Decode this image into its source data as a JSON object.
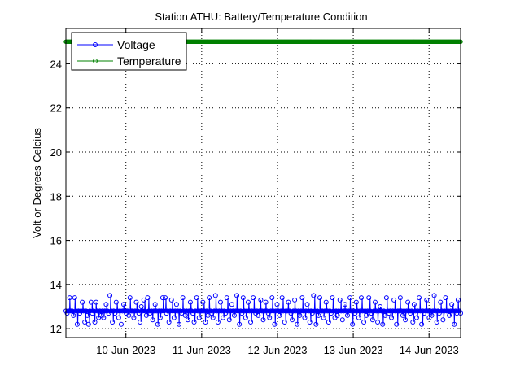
{
  "chart_data": {
    "type": "line",
    "title": "Station ATHU: Battery/Temperature Condition",
    "xlabel": "",
    "ylabel": "Volt or Degrees Celcius",
    "xlim": [
      "2023-06-09T05:00",
      "2023-06-14T10:00"
    ],
    "ylim": [
      11.6,
      25.6
    ],
    "grid": true,
    "legend_position": "top-left",
    "x_ticks": [
      {
        "label": "10-Jun-2023",
        "value": "2023-06-10"
      },
      {
        "label": "11-Jun-2023",
        "value": "2023-06-11"
      },
      {
        "label": "12-Jun-2023",
        "value": "2023-06-12"
      },
      {
        "label": "13-Jun-2023",
        "value": "2023-06-13"
      },
      {
        "label": "14-Jun-2023",
        "value": "2023-06-14"
      }
    ],
    "y_ticks": [
      {
        "label": "12",
        "value": 12
      },
      {
        "label": "14",
        "value": 14
      },
      {
        "label": "16",
        "value": 16
      },
      {
        "label": "18",
        "value": 18
      },
      {
        "label": "20",
        "value": 20
      },
      {
        "label": "22",
        "value": 22
      },
      {
        "label": "24",
        "value": 24
      }
    ],
    "series": [
      {
        "name": "Voltage",
        "color": "#0000ff",
        "marker": "circle",
        "start": "2023-06-09T05:00",
        "end": "2023-06-14T10:00",
        "typical_value": 12.8,
        "values": [
          12.8,
          12.7,
          12.8,
          13.4,
          12.8,
          12.8,
          12.6,
          13.4,
          12.8,
          12.2,
          12.8,
          12.7,
          12.8,
          13.2,
          12.8,
          12.3,
          12.8,
          12.6,
          12.2,
          12.8,
          13.2,
          12.7,
          12.8,
          12.3,
          13.2,
          12.8,
          12.5,
          12.8,
          12.6,
          12.8,
          12.5,
          12.8,
          13.1,
          12.8,
          12.7,
          13.5,
          12.8,
          12.3,
          12.8,
          12.7,
          13.2,
          12.8,
          12.5,
          12.8,
          12.2,
          12.8,
          13.1,
          12.8,
          12.7,
          12.8,
          12.6,
          13.4,
          12.8,
          12.8,
          12.5,
          12.8,
          13.2,
          12.8,
          12.7,
          12.3,
          13.0,
          12.8,
          13.3,
          12.8,
          12.6,
          13.4,
          12.8,
          12.7,
          12.8,
          12.4,
          12.8,
          13.1,
          12.8,
          12.2,
          12.8,
          12.5,
          12.8,
          13.4,
          12.8,
          13.4,
          12.7,
          12.8,
          12.3,
          12.8,
          13.3,
          12.8,
          12.5,
          12.8,
          13.1,
          12.8,
          12.2,
          12.8,
          12.7,
          13.4,
          12.8,
          12.6,
          12.8,
          12.4,
          12.8,
          13.2,
          12.8,
          12.7,
          12.3,
          12.8,
          13.4,
          12.8,
          12.5,
          12.8,
          12.8,
          13.2,
          12.8,
          12.3,
          12.8,
          12.6,
          13.4,
          12.8,
          12.7,
          12.5,
          12.8,
          13.5,
          12.8,
          12.3,
          12.8,
          13.2,
          12.8,
          12.5,
          12.8,
          12.7,
          13.4,
          12.8,
          12.4,
          12.8,
          13.1,
          12.8,
          12.6,
          12.8,
          13.5,
          12.8,
          12.2,
          12.8,
          12.7,
          13.4,
          12.8,
          12.5,
          12.8,
          13.2,
          12.8,
          12.3,
          12.8,
          13.4,
          12.8,
          12.7,
          12.8,
          12.6,
          12.8,
          13.3,
          12.8,
          12.4,
          12.8,
          13.2,
          12.8,
          12.7,
          12.5,
          12.8,
          13.4,
          12.8,
          12.2,
          12.8,
          13.1,
          12.8,
          12.6,
          12.8,
          13.4,
          12.8,
          12.3,
          12.8,
          12.8,
          13.2,
          12.8,
          12.7,
          12.4,
          12.8,
          13.3,
          12.8,
          12.2,
          12.8,
          12.6,
          12.8,
          13.4,
          12.8,
          12.5,
          12.8,
          13.1,
          12.8,
          12.3,
          12.8,
          12.7,
          13.5,
          12.8,
          12.2,
          12.8,
          12.6,
          13.4,
          12.8,
          12.8,
          12.5,
          12.8,
          13.2,
          12.8,
          12.3,
          12.8,
          12.7,
          13.4,
          12.8,
          12.5,
          12.8,
          12.6,
          12.8,
          13.3,
          12.8,
          12.4,
          12.8,
          13.1,
          12.8,
          12.6,
          12.8,
          13.4,
          12.8,
          12.2,
          12.8,
          12.7,
          13.2,
          12.8,
          12.5,
          12.8,
          13.4,
          12.8,
          12.3,
          12.8,
          12.6,
          12.8,
          13.4,
          12.8,
          12.7,
          12.4,
          12.8,
          13.2,
          12.8,
          12.3,
          12.8,
          13.0,
          12.8,
          12.2,
          12.8,
          12.6,
          13.4,
          12.8,
          12.7,
          12.8,
          12.5,
          12.8,
          13.3,
          12.8,
          12.2,
          12.8,
          12.8,
          13.4,
          12.8,
          12.6,
          12.8,
          12.4,
          12.8,
          13.2,
          12.8,
          12.7,
          12.8,
          12.3,
          13.1,
          12.8,
          12.5,
          12.8,
          13.4,
          12.8,
          12.2,
          12.8,
          12.7,
          12.8,
          13.3,
          12.8,
          12.5,
          12.8,
          12.6,
          12.8,
          13.5,
          12.8,
          12.3,
          12.8,
          12.7,
          13.2,
          12.8,
          12.4,
          12.8,
          13.4,
          12.8,
          12.8,
          12.6,
          12.8,
          13.1,
          12.8,
          12.2,
          12.8,
          12.7,
          13.3,
          12.8,
          12.7
        ]
      },
      {
        "name": "Temperature",
        "color": "#008000",
        "marker": "circle",
        "start": "2023-06-09T05:00",
        "end": "2023-06-14T10:00",
        "typical_value": 25,
        "values": [
          25
        ]
      }
    ]
  }
}
